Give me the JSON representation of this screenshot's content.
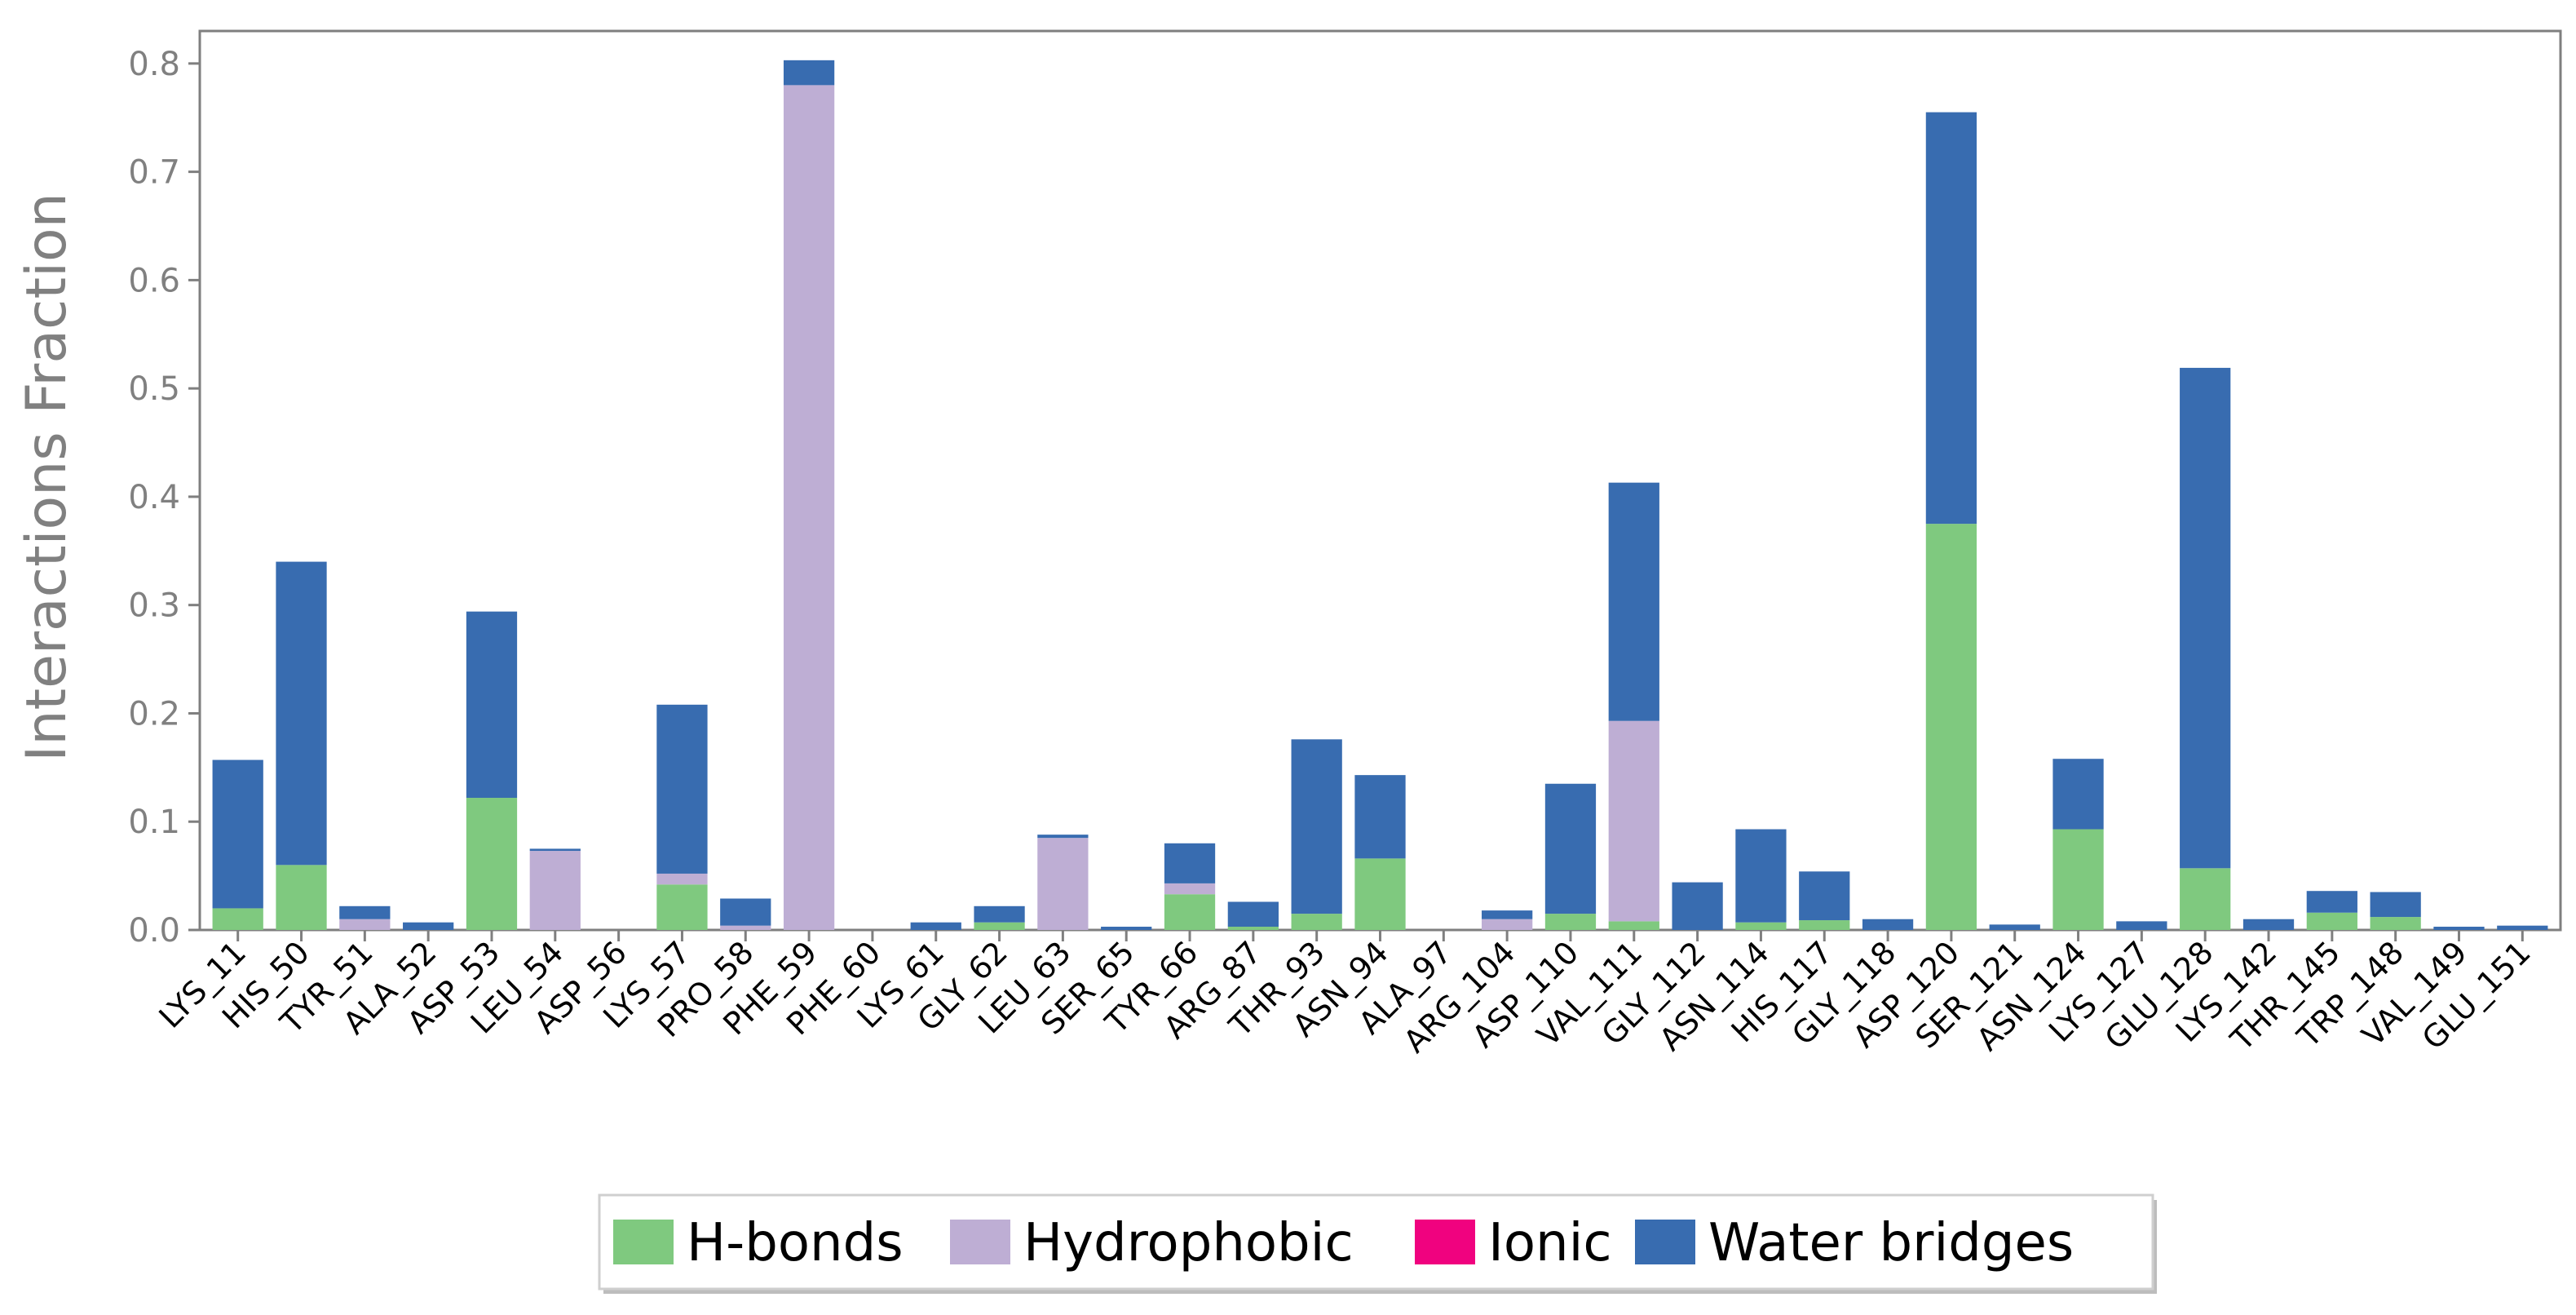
{
  "chart_data": {
    "type": "bar",
    "stacked": true,
    "title": "",
    "xlabel": "",
    "ylabel": "Interactions Fraction",
    "ylim": [
      0,
      0.83
    ],
    "yticks": [
      "0.0",
      "0.1",
      "0.2",
      "0.3",
      "0.4",
      "0.5",
      "0.6",
      "0.7",
      "0.8"
    ],
    "grid": false,
    "legend_position": "bottom-center",
    "categories": [
      "LYS_11",
      "HIS_50",
      "TYR_51",
      "ALA_52",
      "ASP_53",
      "LEU_54",
      "ASP_56",
      "LYS_57",
      "PRO_58",
      "PHE_59",
      "PHE_60",
      "LYS_61",
      "GLY_62",
      "LEU_63",
      "SER_65",
      "TYR_66",
      "ARG_87",
      "THR_93",
      "ASN_94",
      "ALA_97",
      "ARG_104",
      "ASP_110",
      "VAL_111",
      "GLY_112",
      "ASN_114",
      "HIS_117",
      "GLY_118",
      "ASP_120",
      "SER_121",
      "ASN_124",
      "LYS_127",
      "GLU_128",
      "LYS_142",
      "THR_145",
      "TRP_148",
      "VAL_149",
      "GLU_151"
    ],
    "series": [
      {
        "name": "H-bonds",
        "color": "#7fc97f",
        "values": [
          0.02,
          0.06,
          0,
          0,
          0.122,
          0,
          0,
          0.042,
          0,
          0,
          0,
          0,
          0.007,
          0,
          0,
          0.033,
          0.003,
          0.015,
          0.066,
          0,
          0,
          0.015,
          0.008,
          0,
          0.007,
          0.009,
          0,
          0.375,
          0,
          0.093,
          0,
          0.057,
          0,
          0.016,
          0.012,
          0,
          0
        ]
      },
      {
        "name": "Hydrophobic",
        "color": "#beaed4",
        "values": [
          0,
          0,
          0.01,
          0,
          0,
          0.073,
          0,
          0.01,
          0.004,
          0.78,
          0,
          0,
          0,
          0.085,
          0,
          0.01,
          0,
          0,
          0,
          0,
          0.01,
          0,
          0.185,
          0,
          0,
          0,
          0,
          0,
          0,
          0,
          0,
          0,
          0,
          0,
          0,
          0,
          0
        ]
      },
      {
        "name": "Ionic",
        "color": "#f0027f",
        "values": [
          0,
          0,
          0,
          0,
          0,
          0,
          0,
          0,
          0,
          0,
          0,
          0,
          0,
          0,
          0,
          0,
          0,
          0,
          0,
          0,
          0,
          0,
          0,
          0,
          0,
          0,
          0,
          0,
          0,
          0,
          0,
          0,
          0,
          0,
          0,
          0,
          0
        ]
      },
      {
        "name": "Water bridges",
        "color": "#386cb0",
        "values": [
          0.137,
          0.28,
          0.012,
          0.007,
          0.172,
          0.002,
          0,
          0.156,
          0.025,
          0.023,
          0,
          0.007,
          0.015,
          0.003,
          0.003,
          0.037,
          0.023,
          0.161,
          0.077,
          0,
          0.008,
          0.12,
          0.22,
          0.044,
          0.086,
          0.045,
          0.01,
          0.38,
          0.005,
          0.065,
          0.008,
          0.462,
          0.01,
          0.02,
          0.023,
          0.003,
          0.004
        ]
      }
    ]
  }
}
